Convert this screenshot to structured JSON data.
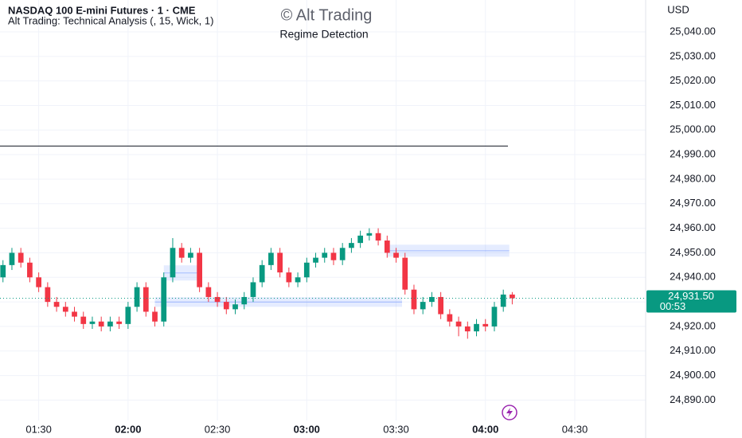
{
  "header": {
    "symbol": "NASDAQ 100 E-mini Futures · 1 · CME",
    "indicator": "Alt Trading: Technical Analysis (, 15, Wick, 1)",
    "watermark": "© Alt Trading",
    "watermark_subtitle": "Regime Detection",
    "currency": "USD"
  },
  "chart_data": {
    "type": "candlestick",
    "x": [
      "01:18",
      "01:21",
      "01:24",
      "01:27",
      "01:30",
      "01:33",
      "01:36",
      "01:39",
      "01:42",
      "01:45",
      "01:48",
      "01:51",
      "01:54",
      "01:57",
      "02:00",
      "02:03",
      "02:06",
      "02:09",
      "02:12",
      "02:15",
      "02:18",
      "02:21",
      "02:24",
      "02:27",
      "02:30",
      "02:33",
      "02:36",
      "02:39",
      "02:42",
      "02:45",
      "02:48",
      "02:51",
      "02:54",
      "02:57",
      "03:00",
      "03:03",
      "03:06",
      "03:09",
      "03:12",
      "03:15",
      "03:18",
      "03:21",
      "03:24",
      "03:27",
      "03:30",
      "03:33",
      "03:36",
      "03:39",
      "03:42",
      "03:45",
      "03:48",
      "03:51",
      "03:54",
      "03:57",
      "04:00",
      "04:03",
      "04:06",
      "04:09"
    ],
    "open": [
      24940,
      24945,
      24950,
      24946,
      24940,
      24936,
      24930,
      24928,
      24926,
      24924,
      24921,
      24922,
      24920,
      24922,
      24921,
      24928,
      24936,
      24926,
      24922,
      24940,
      24952,
      24948,
      24950,
      24936,
      24932,
      24930,
      24927,
      24929,
      24932,
      24938,
      24945,
      24950,
      24942,
      24938,
      24940,
      24946,
      24948,
      24950,
      24947,
      24952,
      24954,
      24957,
      24958,
      24955,
      24950,
      24948,
      24935,
      24927,
      24930,
      24932,
      24925,
      24922,
      24920,
      24918,
      24921,
      24920,
      24928,
      24933
    ],
    "high": [
      24947,
      24952,
      24952,
      24948,
      24942,
      24938,
      24932,
      24930,
      24928,
      24926,
      24924,
      24924,
      24924,
      24924,
      24930,
      24938,
      24938,
      24928,
      24942,
      24956,
      24954,
      24952,
      24952,
      24938,
      24934,
      24932,
      24931,
      24934,
      24940,
      24947,
      24952,
      24952,
      24944,
      24942,
      24948,
      24950,
      24952,
      24952,
      24954,
      24956,
      24959,
      24960,
      24960,
      24957,
      24952,
      24950,
      24937,
      24932,
      24934,
      24934,
      24927,
      24924,
      24922,
      24923,
      24923,
      24930,
      24935,
      24934
    ],
    "low": [
      24938,
      24943,
      24944,
      24938,
      24934,
      24928,
      24926,
      24924,
      24922,
      24919,
      24919,
      24918,
      24918,
      24919,
      24919,
      24926,
      24924,
      24920,
      24920,
      24938,
      24946,
      24946,
      24934,
      24930,
      24928,
      24925,
      24925,
      24927,
      24930,
      24936,
      24943,
      24940,
      24936,
      24936,
      24938,
      24944,
      24946,
      24945,
      24945,
      24950,
      24952,
      24955,
      24953,
      24948,
      24946,
      24933,
      24925,
      24925,
      24928,
      24923,
      24920,
      24916,
      24915,
      24916,
      24918,
      24918,
      24926,
      24929
    ],
    "close": [
      24945,
      24950,
      24946,
      24940,
      24936,
      24930,
      24928,
      24926,
      24924,
      24921,
      24922,
      24920,
      24922,
      24921,
      24928,
      24936,
      24926,
      24922,
      24940,
      24952,
      24948,
      24950,
      24936,
      24932,
      24930,
      24927,
      24929,
      24932,
      24938,
      24945,
      24950,
      24942,
      24938,
      24940,
      24946,
      24948,
      24950,
      24947,
      24952,
      24954,
      24957,
      24958,
      24955,
      24950,
      24948,
      24935,
      24927,
      24930,
      24932,
      24925,
      24922,
      24920,
      24918,
      24921,
      24920,
      24928,
      24933,
      24931.5
    ],
    "last_price_label": "24,931.50",
    "countdown": "00:53",
    "up_color": "#089981",
    "down_color": "#f23645",
    "hline": 24993.5,
    "zones": [
      {
        "start": "02:12",
        "end": "02:24",
        "top": 24944.9,
        "bottom": 24938.7
      },
      {
        "start": "02:09",
        "end": "03:32",
        "top": 24931.9,
        "bottom": 24928
      },
      {
        "start": "03:27",
        "end": "04:08",
        "top": 24953.3,
        "bottom": 24948.4
      }
    ],
    "xlim": [
      "01:17",
      "04:53"
    ],
    "ylim": [
      24883,
      25052
    ],
    "xticks": [
      "01:30",
      "02:00",
      "02:30",
      "03:00",
      "03:30",
      "04:00",
      "04:30"
    ],
    "yticks": [
      {
        "value": 24890,
        "label": "24,890.00"
      },
      {
        "value": 24900,
        "label": "24,900.00"
      },
      {
        "value": 24910,
        "label": "24,910.00"
      },
      {
        "value": 24920,
        "label": "24,920.00"
      },
      {
        "value": 24930,
        "label": "24,930.00"
      },
      {
        "value": 24940,
        "label": "24,940.00"
      },
      {
        "value": 24950,
        "label": "24,950.00"
      },
      {
        "value": 24960,
        "label": "24,960.00"
      },
      {
        "value": 24970,
        "label": "24,970.00"
      },
      {
        "value": 24980,
        "label": "24,980.00"
      },
      {
        "value": 24990,
        "label": "24,990.00"
      },
      {
        "value": 25000,
        "label": "25,000.00"
      },
      {
        "value": 25010,
        "label": "25,010.00"
      },
      {
        "value": 25020,
        "label": "25,020.00"
      },
      {
        "value": 25030,
        "label": "25,030.00"
      },
      {
        "value": 25040,
        "label": "25,040.00"
      }
    ],
    "grid": true
  }
}
